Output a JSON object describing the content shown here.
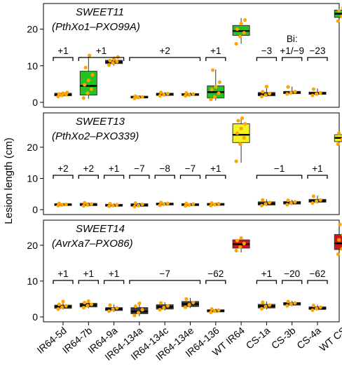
{
  "chart_data": {
    "type": "box",
    "ylabel": "Lesion length (cm)",
    "categories": [
      "IR64-5d",
      "IR64-7b",
      "IR64-9a",
      "IR64-134a",
      "IR64-134c",
      "IR64-134e",
      "IR64-136",
      "WT IR64",
      "CS-1a",
      "CS-3b",
      "CS-4a",
      "WT CS"
    ],
    "panels": [
      {
        "title_gene": "SWEET11",
        "title_effector": "(PthXo1–PXO99A)",
        "ylim": [
          0,
          27
        ],
        "yticks": [
          0,
          10,
          20
        ],
        "boxes": [
          {
            "category": "IR64-5d",
            "q1": 1.8,
            "median": 2.1,
            "q3": 2.5,
            "min": 1.5,
            "max": 2.8,
            "color": "#3a3a3a",
            "points": [
              1.6,
              1.9,
              2.1,
              2.3,
              2.5,
              2.7
            ]
          },
          {
            "category": "IR64-7b",
            "q1": 2.0,
            "median": 4.5,
            "q3": 8.5,
            "min": 1.0,
            "max": 13.0,
            "color": "#22c322",
            "points": [
              1.2,
              2.5,
              3.6,
              4.8,
              6.0,
              7.5,
              9.5,
              12.8
            ]
          },
          {
            "category": "IR64-9a",
            "q1": 10.6,
            "median": 11.0,
            "q3": 11.5,
            "min": 10.0,
            "max": 12.5,
            "color": "#3a3a3a",
            "points": [
              10.2,
              10.8,
              11.1,
              11.4,
              11.8,
              12.4
            ]
          },
          {
            "category": "IR64-134a",
            "q1": 1.2,
            "median": 1.4,
            "q3": 1.7,
            "min": 1.0,
            "max": 1.9,
            "color": "#3a3a3a",
            "points": [
              1.1,
              1.3,
              1.5,
              1.7
            ]
          },
          {
            "category": "IR64-134c",
            "q1": 1.9,
            "median": 2.2,
            "q3": 2.5,
            "min": 1.6,
            "max": 2.8,
            "color": "#3a3a3a",
            "points": [
              1.8,
              2.1,
              2.4,
              2.7
            ]
          },
          {
            "category": "IR64-134e",
            "q1": 1.9,
            "median": 2.1,
            "q3": 2.4,
            "min": 1.7,
            "max": 2.7,
            "color": "#3a3a3a",
            "points": [
              1.8,
              2.0,
              2.3,
              2.6
            ]
          },
          {
            "category": "IR64-136",
            "q1": 1.2,
            "median": 2.8,
            "q3": 4.5,
            "min": 0.5,
            "max": 9.0,
            "color": "#22c322",
            "points": [
              0.8,
              1.5,
              2.5,
              3.5,
              4.2,
              5.5,
              8.8
            ]
          },
          {
            "category": "WT IR64",
            "q1": 18.3,
            "median": 19.5,
            "q3": 21.0,
            "min": 16.0,
            "max": 23.0,
            "color": "#22c322",
            "points": [
              16.0,
              18.0,
              19.0,
              20.0,
              21.5,
              22.5
            ]
          },
          {
            "category": "CS-1a",
            "q1": 1.8,
            "median": 2.2,
            "q3": 2.7,
            "min": 1.5,
            "max": 4.5,
            "color": "#3a3a3a",
            "points": [
              1.6,
              2.0,
              2.4,
              2.9,
              4.3
            ]
          },
          {
            "category": "CS-3b",
            "q1": 2.4,
            "median": 2.7,
            "q3": 3.0,
            "min": 2.2,
            "max": 4.3,
            "color": "#3a3a3a",
            "points": [
              2.3,
              2.6,
              2.9,
              4.2
            ]
          },
          {
            "category": "CS-4a",
            "q1": 2.2,
            "median": 2.5,
            "q3": 2.8,
            "min": 1.8,
            "max": 3.8,
            "color": "#3a3a3a",
            "points": [
              1.9,
              2.3,
              2.6,
              3.6
            ]
          },
          {
            "category": "WT CS",
            "q1": 23.2,
            "median": 24.2,
            "q3": 25.2,
            "min": 22.0,
            "max": 26.0,
            "color": "#22c322",
            "points": [
              22.2,
              23.5,
              24.3,
              25.0,
              25.8
            ]
          }
        ],
        "annotations": [
          {
            "text": "+1",
            "from": "IR64-5d",
            "to": "IR64-5d"
          },
          {
            "text": "+1",
            "from": "IR64-7b",
            "to": "IR64-9a"
          },
          {
            "text": "+2",
            "from": "IR64-134a",
            "to": "IR64-134e"
          },
          {
            "text": "+1",
            "from": "IR64-136",
            "to": "IR64-136"
          },
          {
            "text": "−3",
            "from": "CS-1a",
            "to": "CS-1a"
          },
          {
            "text": "+1/−9",
            "prefix": "Bi:",
            "from": "CS-3b",
            "to": "CS-3b"
          },
          {
            "text": "−23",
            "from": "CS-4a",
            "to": "CS-4a"
          }
        ]
      },
      {
        "title_gene": "SWEET13",
        "title_effector": "(PthXo2–PXO339)",
        "ylim": [
          0,
          31
        ],
        "yticks": [
          0,
          10,
          20
        ],
        "boxes": [
          {
            "category": "IR64-5d",
            "q1": 1.4,
            "median": 1.6,
            "q3": 1.9,
            "min": 1.2,
            "max": 2.1,
            "color": "#3a3a3a",
            "points": [
              1.3,
              1.5,
              1.7,
              2.0
            ]
          },
          {
            "category": "IR64-7b",
            "q1": 1.3,
            "median": 1.6,
            "q3": 2.0,
            "min": 1.1,
            "max": 2.3,
            "color": "#3a3a3a",
            "points": [
              1.2,
              1.5,
              1.8,
              2.2
            ]
          },
          {
            "category": "IR64-9a",
            "q1": 1.1,
            "median": 1.4,
            "q3": 1.7,
            "min": 1.0,
            "max": 2.0,
            "color": "#3a3a3a",
            "points": [
              1.1,
              1.3,
              1.6,
              1.9
            ]
          },
          {
            "category": "IR64-134a",
            "q1": 1.1,
            "median": 1.4,
            "q3": 1.9,
            "min": 0.9,
            "max": 2.2,
            "color": "#3a3a3a",
            "points": [
              1.0,
              1.3,
              1.7,
              2.1
            ]
          },
          {
            "category": "IR64-134c",
            "q1": 1.5,
            "median": 1.8,
            "q3": 2.1,
            "min": 1.3,
            "max": 2.4,
            "color": "#3a3a3a",
            "points": [
              1.4,
              1.7,
              2.0,
              2.3
            ]
          },
          {
            "category": "IR64-134e",
            "q1": 1.3,
            "median": 1.6,
            "q3": 1.9,
            "min": 1.1,
            "max": 2.1,
            "color": "#3a3a3a",
            "points": [
              1.2,
              1.5,
              1.8,
              2.0
            ]
          },
          {
            "category": "IR64-136",
            "q1": 1.4,
            "median": 1.7,
            "q3": 2.0,
            "min": 1.2,
            "max": 2.2,
            "color": "#3a3a3a",
            "points": [
              1.3,
              1.6,
              1.9,
              2.1
            ]
          },
          {
            "category": "WT IR64",
            "q1": 21.5,
            "median": 24.0,
            "q3": 27.5,
            "min": 15.0,
            "max": 29.5,
            "color": "#f5f51e",
            "points": [
              15.5,
              21.0,
              23.0,
              24.5,
              26.0,
              27.5,
              28.5,
              29.3
            ]
          },
          {
            "category": "CS-1a",
            "q1": 1.5,
            "median": 1.9,
            "q3": 2.5,
            "min": 1.2,
            "max": 3.3,
            "color": "#3a3a3a",
            "points": [
              1.3,
              1.8,
              2.3,
              3.1
            ]
          },
          {
            "category": "CS-3b",
            "q1": 1.8,
            "median": 2.2,
            "q3": 2.6,
            "min": 1.5,
            "max": 3.2,
            "color": "#3a3a3a",
            "points": [
              1.6,
              2.1,
              2.5,
              3.0
            ]
          },
          {
            "category": "CS-4a",
            "q1": 2.4,
            "median": 2.8,
            "q3": 3.3,
            "min": 2.0,
            "max": 4.5,
            "color": "#3a3a3a",
            "points": [
              2.1,
              2.7,
              3.1,
              4.3
            ]
          },
          {
            "category": "WT CS",
            "q1": 21.8,
            "median": 23.0,
            "q3": 24.0,
            "min": 20.5,
            "max": 25.0,
            "color": "#f5f51e",
            "points": [
              21.0,
              22.5,
              23.3,
              24.5
            ]
          }
        ],
        "annotations": [
          {
            "text": "+2",
            "from": "IR64-5d",
            "to": "IR64-5d"
          },
          {
            "text": "+2",
            "from": "IR64-7b",
            "to": "IR64-7b"
          },
          {
            "text": "+1",
            "from": "IR64-9a",
            "to": "IR64-9a"
          },
          {
            "text": "−7",
            "from": "IR64-134a",
            "to": "IR64-134a"
          },
          {
            "text": "−8",
            "from": "IR64-134c",
            "to": "IR64-134c"
          },
          {
            "text": "−7",
            "from": "IR64-134e",
            "to": "IR64-134e"
          },
          {
            "text": "+1",
            "from": "IR64-136",
            "to": "IR64-136"
          },
          {
            "text": "−1",
            "from": "CS-1a",
            "to": "CS-3b"
          },
          {
            "text": "+1",
            "from": "CS-4a",
            "to": "CS-4a"
          }
        ]
      },
      {
        "title_gene": "SWEET14",
        "title_effector": "(AvrXa7–PXO86)",
        "ylim": [
          0,
          27
        ],
        "yticks": [
          0,
          10,
          20
        ],
        "boxes": [
          {
            "category": "IR64-5d",
            "q1": 2.4,
            "median": 2.9,
            "q3": 3.3,
            "min": 2.1,
            "max": 4.5,
            "color": "#3a3a3a",
            "points": [
              2.2,
              2.7,
              3.1,
              3.5,
              4.3
            ]
          },
          {
            "category": "IR64-7b",
            "q1": 2.8,
            "median": 3.3,
            "q3": 3.8,
            "min": 2.4,
            "max": 4.5,
            "color": "#3a3a3a",
            "points": [
              2.6,
              3.1,
              3.5,
              4.0,
              4.4
            ]
          },
          {
            "category": "IR64-9a",
            "q1": 1.8,
            "median": 2.2,
            "q3": 2.6,
            "min": 1.4,
            "max": 3.5,
            "color": "#3a3a3a",
            "points": [
              1.6,
              2.1,
              2.5,
              3.3
            ]
          },
          {
            "category": "IR64-134a",
            "q1": 0.9,
            "median": 1.5,
            "q3": 2.6,
            "min": 0.2,
            "max": 4.0,
            "color": "#3a3a3a",
            "points": [
              0.4,
              1.2,
              2.0,
              3.0,
              3.8
            ]
          },
          {
            "category": "IR64-134c",
            "q1": 2.2,
            "median": 2.8,
            "q3": 3.4,
            "min": 1.8,
            "max": 4.1,
            "color": "#3a3a3a",
            "points": [
              2.0,
              2.6,
              3.1,
              3.9
            ]
          },
          {
            "category": "IR64-134e",
            "q1": 2.9,
            "median": 3.6,
            "q3": 4.3,
            "min": 2.5,
            "max": 5.3,
            "color": "#3a3a3a",
            "points": [
              2.7,
              3.4,
              4.0,
              5.0
            ]
          },
          {
            "category": "IR64-136",
            "q1": 1.4,
            "median": 1.7,
            "q3": 2.0,
            "min": 1.2,
            "max": 2.3,
            "color": "#3a3a3a",
            "points": [
              1.3,
              1.6,
              1.9,
              2.2
            ]
          },
          {
            "category": "WT IR64",
            "q1": 19.2,
            "median": 20.3,
            "q3": 21.5,
            "min": 18.0,
            "max": 22.5,
            "color": "#d0151b",
            "points": [
              18.5,
              19.5,
              20.5,
              21.3,
              22.0
            ]
          },
          {
            "category": "CS-1a",
            "q1": 2.5,
            "median": 3.0,
            "q3": 3.5,
            "min": 2.1,
            "max": 4.3,
            "color": "#3a3a3a",
            "points": [
              2.3,
              2.9,
              3.3,
              4.1
            ]
          },
          {
            "category": "CS-3b",
            "q1": 3.3,
            "median": 3.7,
            "q3": 4.0,
            "min": 3.0,
            "max": 4.5,
            "color": "#3a3a3a",
            "points": [
              3.1,
              3.6,
              3.9,
              4.3
            ]
          },
          {
            "category": "CS-4a",
            "q1": 2.1,
            "median": 2.4,
            "q3": 2.8,
            "min": 1.8,
            "max": 3.4,
            "color": "#3a3a3a",
            "points": [
              1.9,
              2.3,
              2.7,
              3.2
            ]
          },
          {
            "category": "WT CS",
            "q1": 18.8,
            "median": 20.5,
            "q3": 23.0,
            "min": 17.0,
            "max": 26.0,
            "color": "#d0151b",
            "points": [
              17.5,
              19.0,
              20.5,
              21.5,
              23.0,
              24.5,
              25.8
            ]
          }
        ],
        "annotations": [
          {
            "text": "+1",
            "from": "IR64-5d",
            "to": "IR64-5d"
          },
          {
            "text": "+1",
            "from": "IR64-7b",
            "to": "IR64-7b"
          },
          {
            "text": "+1",
            "from": "IR64-9a",
            "to": "IR64-9a"
          },
          {
            "text": "−7",
            "from": "IR64-134a",
            "to": "IR64-134e"
          },
          {
            "text": "−62",
            "from": "IR64-136",
            "to": "IR64-136"
          },
          {
            "text": "+1",
            "from": "CS-1a",
            "to": "CS-1a"
          },
          {
            "text": "−20",
            "from": "CS-3b",
            "to": "CS-3b"
          },
          {
            "text": "−62",
            "from": "CS-4a",
            "to": "CS-4a"
          }
        ]
      }
    ],
    "point_color": "#ffa500",
    "median_color": "#000000",
    "grid": false,
    "legend": "none"
  }
}
